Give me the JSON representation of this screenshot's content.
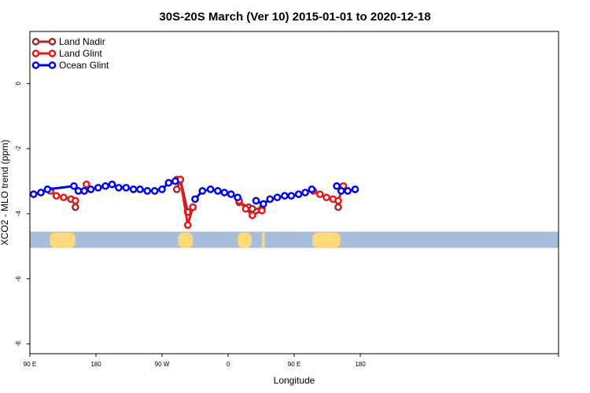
{
  "chart_data": {
    "type": "line",
    "title": "30S-20S March (Ver 10)   2015-01-01 to 2020-12-18",
    "xlabel": "Longitude",
    "ylabel": "XCO2 - MLO trend (ppm)",
    "xlim": [
      0,
      720
    ],
    "ylim": [
      -8.3,
      1.6
    ],
    "x_ticks": [
      {
        "value": 0,
        "label": "90 E"
      },
      {
        "value": 90,
        "label": "180"
      },
      {
        "value": 180,
        "label": "90 W"
      },
      {
        "value": 270,
        "label": "0"
      },
      {
        "value": 360,
        "label": "90 E"
      },
      {
        "value": 450,
        "label": "180"
      }
    ],
    "y_ticks": [
      {
        "value": 0,
        "label": "0"
      },
      {
        "value": -2,
        "label": "-2"
      },
      {
        "value": -4,
        "label": "-4"
      },
      {
        "value": -6,
        "label": "-6"
      },
      {
        "value": -8,
        "label": "-8"
      }
    ],
    "legend_position": "top-left",
    "land_band": {
      "y_top": -4.55,
      "y_bottom": -5.05,
      "ocean_color": "#a6bddb",
      "land_color": "#fdd97a",
      "land_segments": [
        [
          27,
          62
        ],
        [
          202,
          222
        ],
        [
          283,
          302
        ],
        [
          316,
          320
        ],
        [
          385,
          423
        ]
      ]
    },
    "series": [
      {
        "name": "Land Nadir",
        "color": "#a52a2a",
        "segments": [
          [
            [
              62,
              -3.8
            ]
          ],
          [
            [
              200,
              -3.25
            ],
            [
              205,
              -2.95
            ],
            [
              215,
              -3.95
            ],
            [
              222,
              -3.8
            ]
          ],
          [
            [
              285,
              -3.65
            ],
            [
              298,
              -3.8
            ],
            [
              303,
              -3.85
            ],
            [
              316,
              -3.85
            ]
          ],
          [
            [
              420,
              -3.8
            ]
          ]
        ]
      },
      {
        "name": "Land Glint",
        "color": "#e41a1c",
        "segments": [
          [
            [
              28,
              -3.3
            ],
            [
              36,
              -3.45
            ],
            [
              46,
              -3.5
            ],
            [
              56,
              -3.55
            ],
            [
              62,
              -3.6
            ]
          ],
          [
            [
              77,
              -3.1
            ]
          ],
          [
            [
              200,
              -2.95
            ],
            [
              205,
              -2.95
            ],
            [
              215,
              -4.35
            ],
            [
              222,
              -3.8
            ]
          ],
          [
            [
              285,
              -3.6
            ],
            [
              294,
              -3.85
            ],
            [
              303,
              -4.05
            ],
            [
              316,
              -3.9
            ]
          ],
          [
            [
              386,
              -3.3
            ],
            [
              395,
              -3.4
            ],
            [
              404,
              -3.5
            ],
            [
              413,
              -3.55
            ],
            [
              420,
              -3.6
            ],
            [
              427,
              -3.15
            ]
          ]
        ]
      },
      {
        "name": "Ocean Glint",
        "color": "#0000ee",
        "segments": [
          [
            [
              5,
              -3.4
            ],
            [
              15,
              -3.35
            ],
            [
              24,
              -3.25
            ],
            [
              60,
              -3.15
            ],
            [
              66,
              -3.3
            ],
            [
              74,
              -3.3
            ],
            [
              83,
              -3.25
            ],
            [
              93,
              -3.2
            ],
            [
              103,
              -3.15
            ],
            [
              112,
              -3.1
            ],
            [
              121,
              -3.2
            ],
            [
              131,
              -3.2
            ],
            [
              141,
              -3.25
            ],
            [
              150,
              -3.25
            ],
            [
              160,
              -3.3
            ],
            [
              170,
              -3.3
            ],
            [
              180,
              -3.25
            ],
            [
              189,
              -3.05
            ],
            [
              198,
              -3.0
            ]
          ],
          [
            [
              225,
              -3.55
            ],
            [
              235,
              -3.3
            ],
            [
              246,
              -3.25
            ],
            [
              256,
              -3.3
            ],
            [
              265,
              -3.35
            ],
            [
              274,
              -3.4
            ],
            [
              283,
              -3.5
            ]
          ],
          [
            [
              308,
              -3.6
            ],
            [
              318,
              -3.7
            ],
            [
              327,
              -3.55
            ],
            [
              337,
              -3.5
            ],
            [
              347,
              -3.45
            ],
            [
              356,
              -3.45
            ],
            [
              366,
              -3.4
            ],
            [
              375,
              -3.35
            ],
            [
              384,
              -3.25
            ]
          ],
          [
            [
              418,
              -3.15
            ],
            [
              424,
              -3.3
            ],
            [
              433,
              -3.3
            ],
            [
              443,
              -3.25
            ]
          ]
        ]
      }
    ]
  }
}
